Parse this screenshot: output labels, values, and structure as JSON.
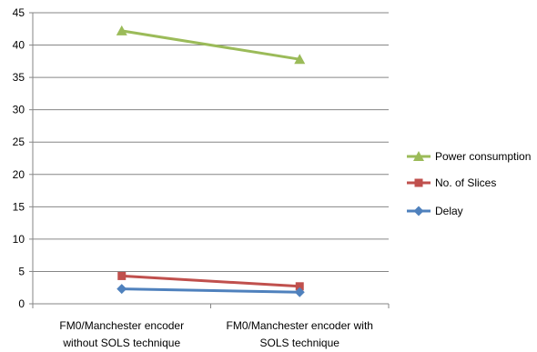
{
  "chart_data": {
    "type": "line",
    "categories": [
      [
        "FM0/Manchester encoder",
        "without SOLS technique"
      ],
      [
        "FM0/Manchester encoder with",
        "SOLS technique"
      ]
    ],
    "series": [
      {
        "name": "Power consumption",
        "values": [
          42.2,
          37.8
        ],
        "color": "#9BBB59",
        "marker": "triangle"
      },
      {
        "name": "No. of Slices",
        "values": [
          4.3,
          2.7
        ],
        "color": "#C0504D",
        "marker": "square"
      },
      {
        "name": "Delay",
        "values": [
          2.3,
          1.8
        ],
        "color": "#4F81BD",
        "marker": "diamond"
      }
    ],
    "ylim": [
      0,
      45
    ],
    "yticks": [
      0,
      5,
      10,
      15,
      20,
      25,
      30,
      35,
      40,
      45
    ],
    "grid": true,
    "legend_position": "right",
    "title": "",
    "xlabel": "",
    "ylabel": ""
  }
}
